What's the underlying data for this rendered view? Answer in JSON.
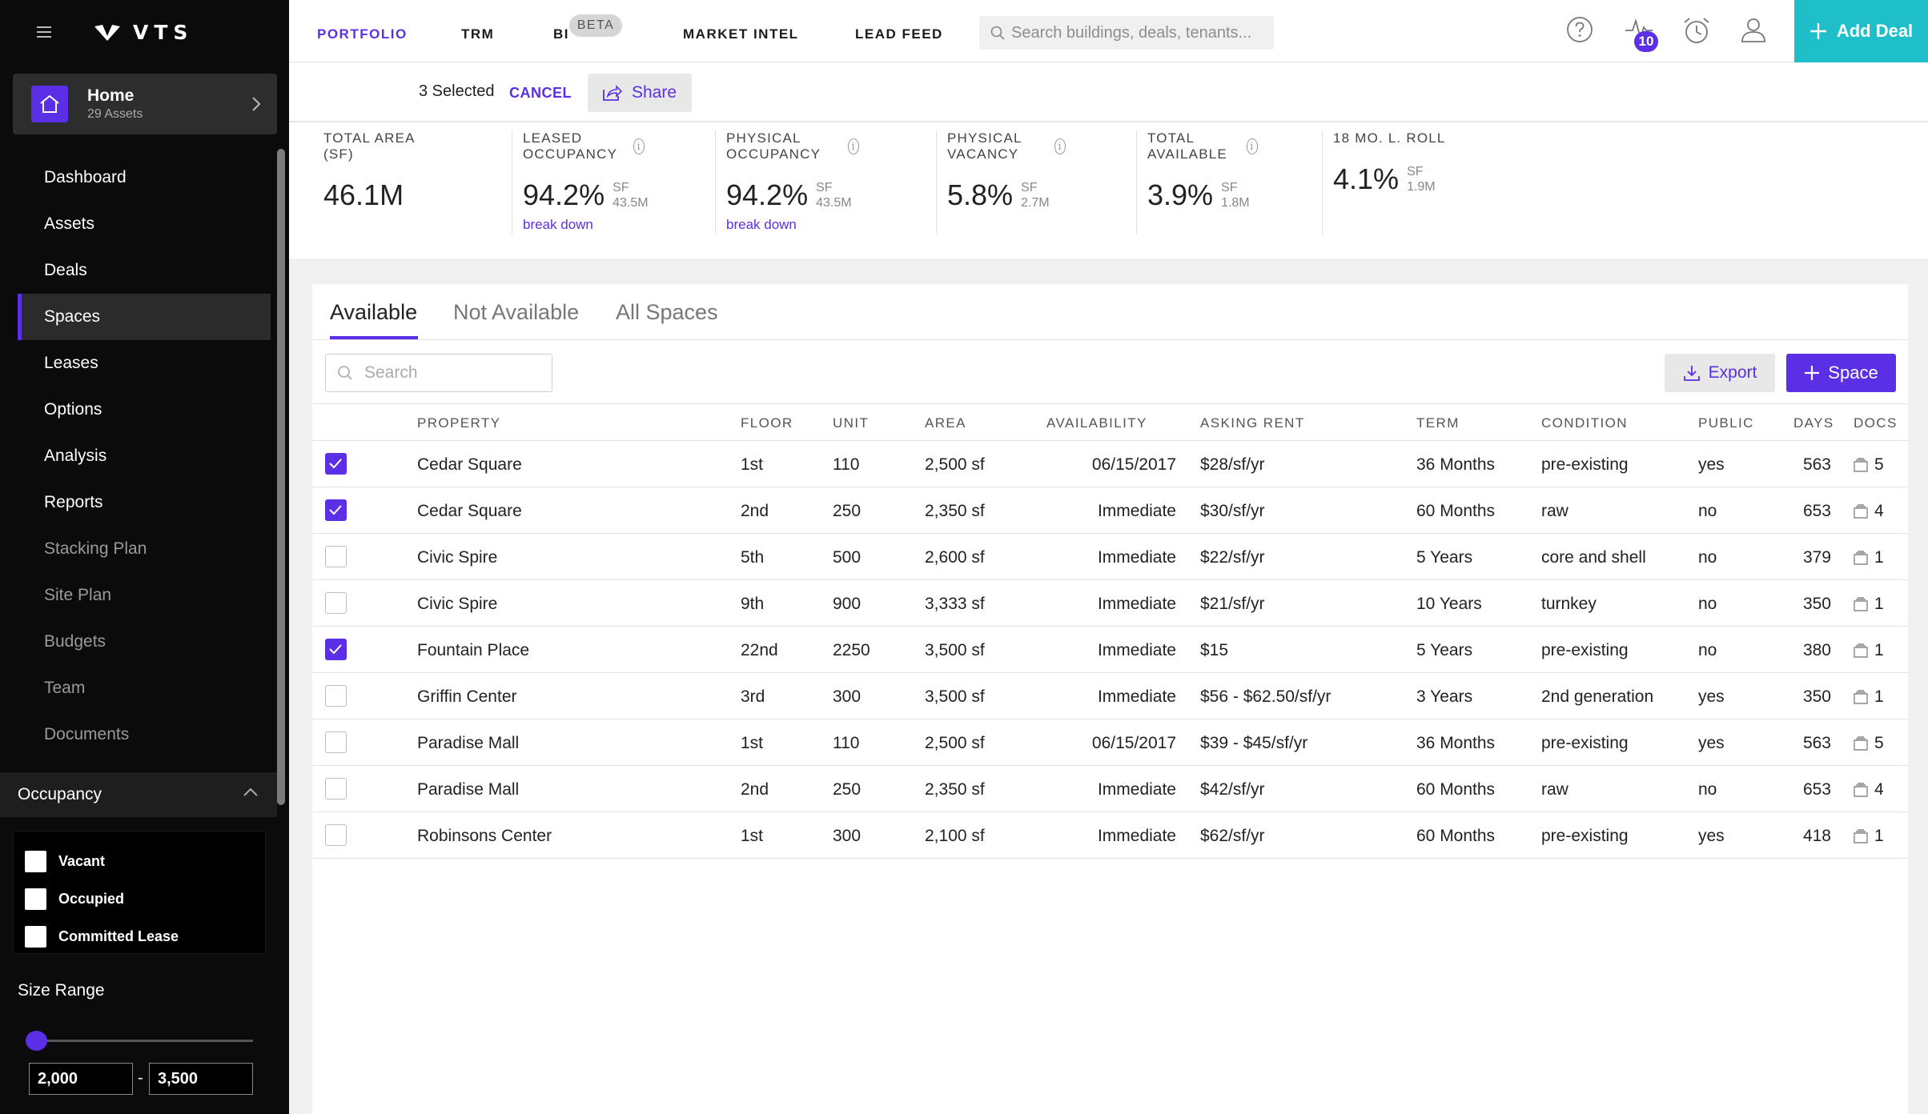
{
  "sidebar": {
    "logo_text": "VTS",
    "home": {
      "title": "Home",
      "subtitle": "29 Assets"
    },
    "nav": [
      {
        "label": "Dashboard",
        "state": "normal"
      },
      {
        "label": "Assets",
        "state": "normal"
      },
      {
        "label": "Deals",
        "state": "normal"
      },
      {
        "label": "Spaces",
        "state": "active"
      },
      {
        "label": "Leases",
        "state": "normal"
      },
      {
        "label": "Options",
        "state": "normal"
      },
      {
        "label": "Analysis",
        "state": "normal"
      },
      {
        "label": "Reports",
        "state": "normal"
      },
      {
        "label": "Stacking Plan",
        "state": "dim"
      },
      {
        "label": "Site Plan",
        "state": "dim"
      },
      {
        "label": "Budgets",
        "state": "dim"
      },
      {
        "label": "Team",
        "state": "dim"
      },
      {
        "label": "Documents",
        "state": "dim"
      }
    ],
    "occupancy": {
      "title": "Occupancy",
      "options": [
        "Vacant",
        "Occupied",
        "Committed Lease"
      ]
    },
    "size_range": {
      "title": "Size Range",
      "min": "2,000",
      "max": "3,500",
      "separator": "-"
    }
  },
  "topbar": {
    "nav": [
      "PORTFOLIO",
      "TRM",
      "BI",
      "MARKET INTEL",
      "LEAD FEED"
    ],
    "active_nav": "PORTFOLIO",
    "beta_label": "BETA",
    "search_placeholder": "Search buildings, deals, tenants...",
    "notifications_count": "10",
    "add_deal_label": "Add Deal",
    "icons": [
      "help-icon",
      "activity-icon",
      "alarm-clock-icon",
      "user-icon",
      "plus-icon"
    ]
  },
  "selection": {
    "count_text": "3 Selected",
    "cancel_label": "CANCEL",
    "share_label": "Share"
  },
  "stats": [
    {
      "label": "TOTAL AREA (SF)",
      "value": "46.1M",
      "sf_label": "",
      "sf_value": "",
      "link": "",
      "info": false
    },
    {
      "label": "LEASED OCCUPANCY",
      "value": "94.2%",
      "sf_label": "SF",
      "sf_value": "43.5M",
      "link": "break down",
      "info": true
    },
    {
      "label": "PHYSICAL OCCUPANCY",
      "value": "94.2%",
      "sf_label": "SF",
      "sf_value": "43.5M",
      "link": "break down",
      "info": true
    },
    {
      "label": "PHYSICAL VACANCY",
      "value": "5.8%",
      "sf_label": "SF",
      "sf_value": "2.7M",
      "link": "",
      "info": true
    },
    {
      "label": "TOTAL AVAILABLE",
      "value": "3.9%",
      "sf_label": "SF",
      "sf_value": "1.8M",
      "link": "",
      "info": true
    },
    {
      "label": "18 MO. L. ROLL",
      "value": "4.1%",
      "sf_label": "SF",
      "sf_value": "1.9M",
      "link": "",
      "info": false
    }
  ],
  "tabs": [
    "Available",
    "Not Available",
    "All Spaces"
  ],
  "active_tab": "Available",
  "toolbar": {
    "search_placeholder": "Search",
    "export_label": "Export",
    "add_space_label": "Space"
  },
  "table": {
    "columns": [
      "PROPERTY",
      "FLOOR",
      "UNIT",
      "AREA",
      "AVAILABILITY",
      "ASKING RENT",
      "TERM",
      "CONDITION",
      "PUBLIC",
      "DAYS",
      "DOCS"
    ],
    "rows": [
      {
        "checked": true,
        "property": "Cedar Square",
        "floor": "1st",
        "unit": "110",
        "area": "2,500 sf",
        "availability": "06/15/2017",
        "rent": "$28/sf/yr",
        "term": "36 Months",
        "condition": "pre-existing",
        "public": "yes",
        "days": "563",
        "docs": "5"
      },
      {
        "checked": true,
        "property": "Cedar Square",
        "floor": "2nd",
        "unit": "250",
        "area": "2,350 sf",
        "availability": "Immediate",
        "rent": "$30/sf/yr",
        "term": "60 Months",
        "condition": "raw",
        "public": "no",
        "days": "653",
        "docs": "4"
      },
      {
        "checked": false,
        "property": "Civic Spire",
        "floor": "5th",
        "unit": "500",
        "area": "2,600 sf",
        "availability": "Immediate",
        "rent": "$22/sf/yr",
        "term": "5 Years",
        "condition": "core and shell",
        "public": "no",
        "days": "379",
        "docs": "1"
      },
      {
        "checked": false,
        "property": "Civic Spire",
        "floor": "9th",
        "unit": "900",
        "area": "3,333 sf",
        "availability": "Immediate",
        "rent": "$21/sf/yr",
        "term": "10 Years",
        "condition": "turnkey",
        "public": "no",
        "days": "350",
        "docs": "1"
      },
      {
        "checked": true,
        "property": "Fountain Place",
        "floor": "22nd",
        "unit": "2250",
        "area": "3,500 sf",
        "availability": "Immediate",
        "rent": "$15",
        "term": "5 Years",
        "condition": "pre-existing",
        "public": "no",
        "days": "380",
        "docs": "1"
      },
      {
        "checked": false,
        "property": "Griffin Center",
        "floor": "3rd",
        "unit": "300",
        "area": "3,500 sf",
        "availability": "Immediate",
        "rent": "$56 - $62.50/sf/yr",
        "term": "3 Years",
        "condition": "2nd generation",
        "public": "yes",
        "days": "350",
        "docs": "1"
      },
      {
        "checked": false,
        "property": "Paradise Mall",
        "floor": "1st",
        "unit": "110",
        "area": "2,500 sf",
        "availability": "06/15/2017",
        "rent": "$39 - $45/sf/yr",
        "term": "36 Months",
        "condition": "pre-existing",
        "public": "yes",
        "days": "563",
        "docs": "5"
      },
      {
        "checked": false,
        "property": "Paradise Mall",
        "floor": "2nd",
        "unit": "250",
        "area": "2,350 sf",
        "availability": "Immediate",
        "rent": "$42/sf/yr",
        "term": "60 Months",
        "condition": "raw",
        "public": "no",
        "days": "653",
        "docs": "4"
      },
      {
        "checked": false,
        "property": "Robinsons Center",
        "floor": "1st",
        "unit": "300",
        "area": "2,100 sf",
        "availability": "Immediate",
        "rent": "$62/sf/yr",
        "term": "60 Months",
        "condition": "pre-existing",
        "public": "yes",
        "days": "418",
        "docs": "1"
      }
    ]
  },
  "colors": {
    "accent": "#5a2fe6",
    "add_deal": "#1ebfc8",
    "sidebar_bg": "#0b0b0b"
  }
}
